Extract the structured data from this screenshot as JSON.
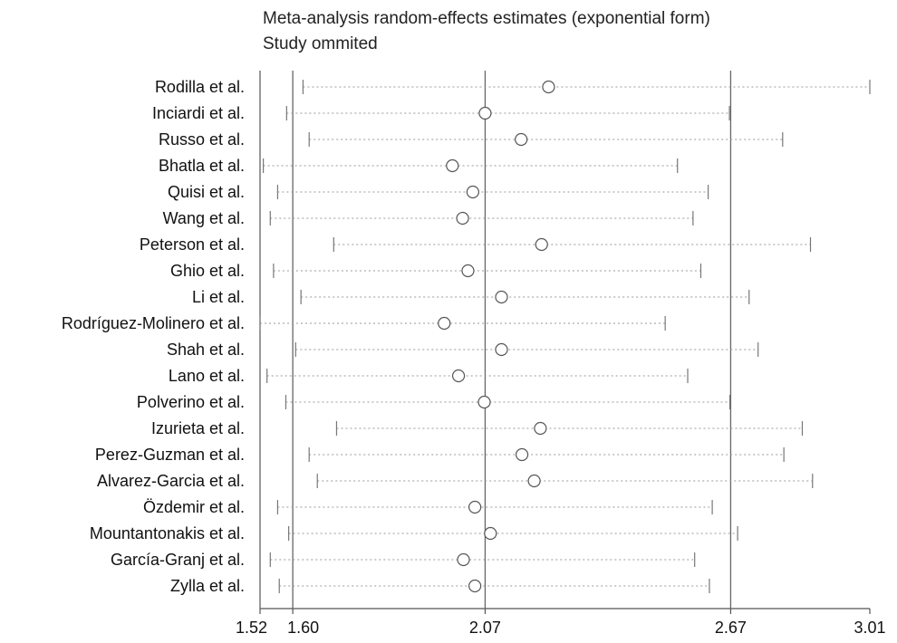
{
  "chart_data": {
    "type": "forest",
    "title": "Meta-analysis random-effects estimates (exponential form)",
    "subtitle": "Study ommited",
    "xlim": [
      1.52,
      3.01
    ],
    "ticks": [
      "1.52",
      "1.60",
      "2.07",
      "2.67",
      "3.01"
    ],
    "reference_lines": [
      1.6,
      2.07,
      2.67
    ],
    "studies": [
      {
        "label": "Rodilla et al.",
        "lower": 1.625,
        "estimate": 2.225,
        "upper": 3.01
      },
      {
        "label": "Inciardi et al.",
        "lower": 1.585,
        "estimate": 2.07,
        "upper": 2.667
      },
      {
        "label": "Russo et al.",
        "lower": 1.64,
        "estimate": 2.158,
        "upper": 2.797
      },
      {
        "label": "Bhatla et al.",
        "lower": 1.528,
        "estimate": 1.99,
        "upper": 2.54
      },
      {
        "label": "Quisi et al.",
        "lower": 1.563,
        "estimate": 2.04,
        "upper": 2.615
      },
      {
        "label": "Wang  et al.",
        "lower": 1.545,
        "estimate": 2.015,
        "upper": 2.578
      },
      {
        "label": "Peterson et al.",
        "lower": 1.7,
        "estimate": 2.208,
        "upper": 2.865
      },
      {
        "label": "Ghio et al.",
        "lower": 1.553,
        "estimate": 2.028,
        "upper": 2.597
      },
      {
        "label": "Li et al.",
        "lower": 1.62,
        "estimate": 2.11,
        "upper": 2.715
      },
      {
        "label": "Rodríguez-Molinero et al.",
        "lower": 1.52,
        "estimate": 1.97,
        "upper": 2.51
      },
      {
        "label": "Shah et al.",
        "lower": 1.607,
        "estimate": 2.11,
        "upper": 2.737
      },
      {
        "label": "Lano et al.",
        "lower": 1.537,
        "estimate": 2.005,
        "upper": 2.565
      },
      {
        "label": "Polverino et al.",
        "lower": 1.583,
        "estimate": 2.068,
        "upper": 2.668
      },
      {
        "label": "Izurieta et al.",
        "lower": 1.707,
        "estimate": 2.205,
        "upper": 2.845
      },
      {
        "label": "Perez-Guzman et al.",
        "lower": 1.64,
        "estimate": 2.16,
        "upper": 2.8
      },
      {
        "label": "Alvarez-Garcia et al.",
        "lower": 1.66,
        "estimate": 2.19,
        "upper": 2.87
      },
      {
        "label": "Özdemir et al.",
        "lower": 1.563,
        "estimate": 2.045,
        "upper": 2.625
      },
      {
        "label": "Mountantonakis et al.",
        "lower": 1.59,
        "estimate": 2.083,
        "upper": 2.687
      },
      {
        "label": "García-Granj et al.",
        "lower": 1.545,
        "estimate": 2.017,
        "upper": 2.582
      },
      {
        "label": "Zylla et al.",
        "lower": 1.567,
        "estimate": 2.045,
        "upper": 2.618
      }
    ]
  }
}
